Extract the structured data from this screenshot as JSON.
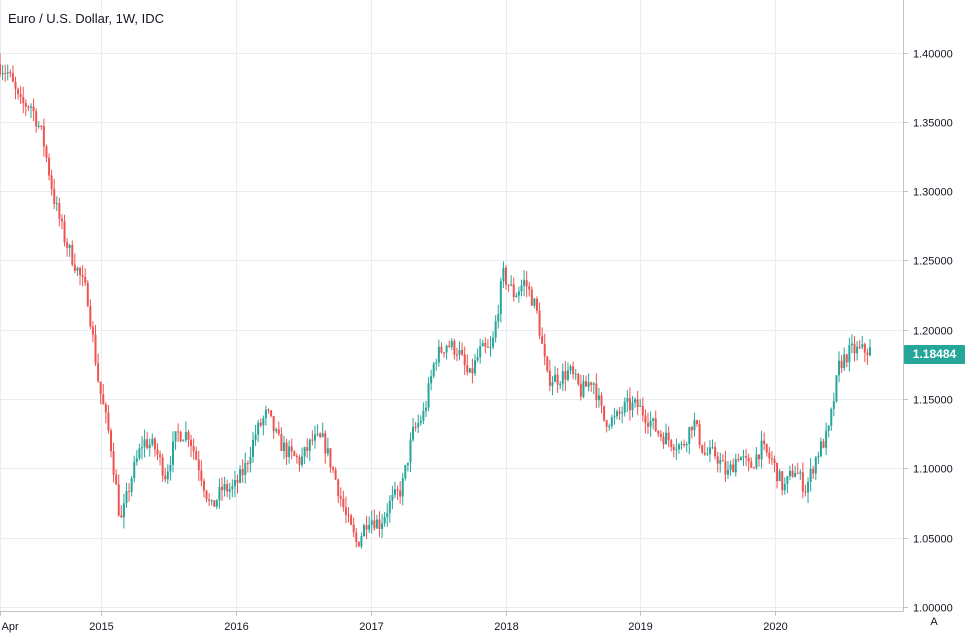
{
  "chart_data": {
    "type": "candlestick",
    "title": "Euro / U.S. Dollar, 1W, IDC",
    "x_tick_labels": [
      "Apr",
      "2015",
      "2016",
      "2017",
      "2018",
      "2019",
      "2020"
    ],
    "y_tick_labels": [
      "1.40000",
      "1.35000",
      "1.30000",
      "1.25000",
      "1.20000",
      "1.15000",
      "1.10000",
      "1.05000",
      "1.00000"
    ],
    "y_ticks": [
      1.4,
      1.35,
      1.3,
      1.25,
      1.2,
      1.15,
      1.1,
      1.05,
      1.0
    ],
    "ylim": [
      0.997,
      1.438
    ],
    "x_range": [
      "2014-04-01",
      "2020-09-15"
    ],
    "last_price": "1.18484",
    "up_color": "#26a69a",
    "down_color": "#ef5350",
    "grid": true,
    "path": [
      [
        "2014-04-01",
        1.392
      ],
      [
        "2014-05-01",
        1.385
      ],
      [
        "2014-06-01",
        1.363
      ],
      [
        "2014-07-01",
        1.362
      ],
      [
        "2014-08-01",
        1.34
      ],
      [
        "2014-09-01",
        1.295
      ],
      [
        "2014-10-01",
        1.265
      ],
      [
        "2014-11-01",
        1.245
      ],
      [
        "2014-12-01",
        1.225
      ],
      [
        "2015-01-01",
        1.16
      ],
      [
        "2015-02-01",
        1.12
      ],
      [
        "2015-03-01",
        1.06
      ],
      [
        "2015-04-01",
        1.095
      ],
      [
        "2015-05-01",
        1.12
      ],
      [
        "2015-06-01",
        1.115
      ],
      [
        "2015-07-01",
        1.095
      ],
      [
        "2015-08-01",
        1.125
      ],
      [
        "2015-09-01",
        1.125
      ],
      [
        "2015-10-01",
        1.1
      ],
      [
        "2015-11-01",
        1.07
      ],
      [
        "2015-12-01",
        1.085
      ],
      [
        "2016-01-01",
        1.085
      ],
      [
        "2016-02-01",
        1.1
      ],
      [
        "2016-03-01",
        1.125
      ],
      [
        "2016-04-01",
        1.14
      ],
      [
        "2016-05-01",
        1.12
      ],
      [
        "2016-06-01",
        1.11
      ],
      [
        "2016-07-01",
        1.105
      ],
      [
        "2016-08-01",
        1.12
      ],
      [
        "2016-09-01",
        1.12
      ],
      [
        "2016-10-01",
        1.095
      ],
      [
        "2016-11-01",
        1.065
      ],
      [
        "2016-12-01",
        1.045
      ],
      [
        "2017-01-01",
        1.065
      ],
      [
        "2017-02-01",
        1.06
      ],
      [
        "2017-03-01",
        1.075
      ],
      [
        "2017-04-01",
        1.085
      ],
      [
        "2017-05-01",
        1.125
      ],
      [
        "2017-06-01",
        1.14
      ],
      [
        "2017-07-01",
        1.18
      ],
      [
        "2017-08-01",
        1.19
      ],
      [
        "2017-09-01",
        1.185
      ],
      [
        "2017-10-01",
        1.165
      ],
      [
        "2017-11-01",
        1.185
      ],
      [
        "2017-12-01",
        1.185
      ],
      [
        "2018-01-01",
        1.24
      ],
      [
        "2018-02-01",
        1.225
      ],
      [
        "2018-03-01",
        1.235
      ],
      [
        "2018-04-01",
        1.215
      ],
      [
        "2018-05-01",
        1.165
      ],
      [
        "2018-06-01",
        1.165
      ],
      [
        "2018-07-01",
        1.17
      ],
      [
        "2018-08-01",
        1.155
      ],
      [
        "2018-09-01",
        1.165
      ],
      [
        "2018-10-01",
        1.135
      ],
      [
        "2018-11-01",
        1.135
      ],
      [
        "2018-12-01",
        1.145
      ],
      [
        "2019-01-01",
        1.145
      ],
      [
        "2019-02-01",
        1.135
      ],
      [
        "2019-03-01",
        1.125
      ],
      [
        "2019-04-01",
        1.12
      ],
      [
        "2019-05-01",
        1.115
      ],
      [
        "2019-06-01",
        1.135
      ],
      [
        "2019-07-01",
        1.11
      ],
      [
        "2019-08-01",
        1.11
      ],
      [
        "2019-09-01",
        1.095
      ],
      [
        "2019-10-01",
        1.11
      ],
      [
        "2019-11-01",
        1.1
      ],
      [
        "2019-12-01",
        1.115
      ],
      [
        "2020-01-01",
        1.105
      ],
      [
        "2020-02-01",
        1.085
      ],
      [
        "2020-03-01",
        1.1
      ],
      [
        "2020-04-01",
        1.085
      ],
      [
        "2020-05-01",
        1.11
      ],
      [
        "2020-06-01",
        1.125
      ],
      [
        "2020-07-01",
        1.175
      ],
      [
        "2020-08-01",
        1.185
      ],
      [
        "2020-09-15",
        1.185
      ]
    ]
  },
  "ui": {
    "auto_scale_label": "A"
  }
}
